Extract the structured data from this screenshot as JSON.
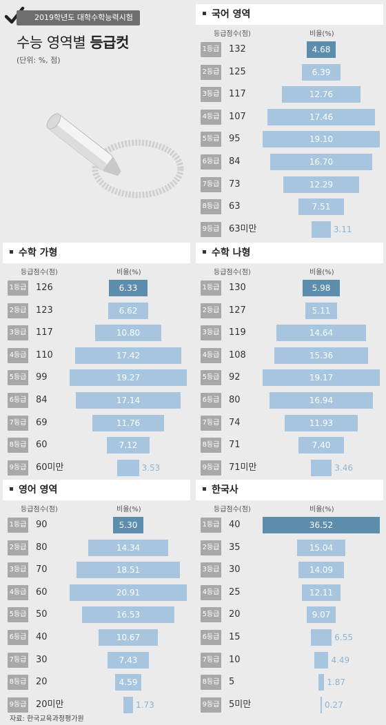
{
  "header": {
    "tag": "2019학년도 대학수학능력시험",
    "title_regular": "수능 영역별",
    "title_bold": "등급컷",
    "unit": "(단위: %, 점)"
  },
  "colors": {
    "bar": "#a7c5de",
    "top_bar": "#5c8dac",
    "badge": "#a8a8a8",
    "outside_label": "#8fb4d3"
  },
  "icons": [
    "checkmark-icon",
    "chalk-icon"
  ],
  "source": "자료: 한국교육과정평가원",
  "chart_data": [
    {
      "type": "bar",
      "title": "국어 영역",
      "score_header": "등급점수(점)",
      "ratio_header": "비율(%)",
      "grades": [
        "1등급",
        "2등급",
        "3등급",
        "4등급",
        "5등급",
        "6등급",
        "7등급",
        "8등급",
        "9등급"
      ],
      "scores": [
        "132",
        "125",
        "117",
        "107",
        "95",
        "84",
        "73",
        "63",
        "63미만"
      ],
      "values": [
        4.68,
        6.39,
        12.76,
        17.46,
        19.1,
        16.7,
        12.29,
        7.51,
        3.11
      ],
      "labels": [
        "4.68",
        "6.39",
        "12.76",
        "17.46",
        "19.10",
        "16.70",
        "12.29",
        "7.51",
        "3.11"
      ]
    },
    {
      "type": "bar",
      "title": "수학 가형",
      "score_header": "등급점수(점)",
      "ratio_header": "비율(%)",
      "grades": [
        "1등급",
        "2등급",
        "3등급",
        "4등급",
        "5등급",
        "6등급",
        "7등급",
        "8등급",
        "9등급"
      ],
      "scores": [
        "126",
        "123",
        "117",
        "110",
        "99",
        "84",
        "69",
        "60",
        "60미만"
      ],
      "values": [
        6.33,
        6.62,
        10.8,
        17.42,
        19.27,
        17.14,
        11.76,
        7.12,
        3.53
      ],
      "labels": [
        "6.33",
        "6.62",
        "10.80",
        "17.42",
        "19.27",
        "17.14",
        "11.76",
        "7.12",
        "3.53"
      ]
    },
    {
      "type": "bar",
      "title": "수학 나형",
      "score_header": "등급점수(점)",
      "ratio_header": "비율(%)",
      "grades": [
        "1등급",
        "2등급",
        "3등급",
        "4등급",
        "5등급",
        "6등급",
        "7등급",
        "8등급",
        "9등급"
      ],
      "scores": [
        "130",
        "127",
        "119",
        "108",
        "92",
        "80",
        "74",
        "71",
        "71미만"
      ],
      "values": [
        5.98,
        5.11,
        14.64,
        15.36,
        19.17,
        16.94,
        11.93,
        7.4,
        3.46
      ],
      "labels": [
        "5.98",
        "5.11",
        "14.64",
        "15.36",
        "19.17",
        "16.94",
        "11.93",
        "7.40",
        "3.46"
      ]
    },
    {
      "type": "bar",
      "title": "영어 영역",
      "score_header": "등급점수(점)",
      "ratio_header": "비율(%)",
      "grades": [
        "1등급",
        "2등급",
        "3등급",
        "4등급",
        "5등급",
        "6등급",
        "7등급",
        "8등급",
        "9등급"
      ],
      "scores": [
        "90",
        "80",
        "70",
        "60",
        "50",
        "40",
        "30",
        "20",
        "20미만"
      ],
      "values": [
        5.3,
        14.34,
        18.51,
        20.91,
        16.53,
        10.67,
        7.43,
        4.59,
        1.73
      ],
      "labels": [
        "5.30",
        "14.34",
        "18.51",
        "20.91",
        "16.53",
        "10.67",
        "7.43",
        "4.59",
        "1.73"
      ]
    },
    {
      "type": "bar",
      "title": "한국사",
      "score_header": "등급점수(점)",
      "ratio_header": "비율(%)",
      "grades": [
        "1등급",
        "2등급",
        "3등급",
        "4등급",
        "5등급",
        "6등급",
        "7등급",
        "8등급",
        "9등급"
      ],
      "scores": [
        "40",
        "35",
        "30",
        "25",
        "20",
        "15",
        "10",
        "5",
        "5미만"
      ],
      "values": [
        36.52,
        15.04,
        14.09,
        12.11,
        9.07,
        6.55,
        4.49,
        1.87,
        0.27
      ],
      "labels": [
        "36.52",
        "15.04",
        "14.09",
        "12.11",
        "9.07",
        "6.55",
        "4.49",
        "1.87",
        "0.27"
      ]
    }
  ]
}
